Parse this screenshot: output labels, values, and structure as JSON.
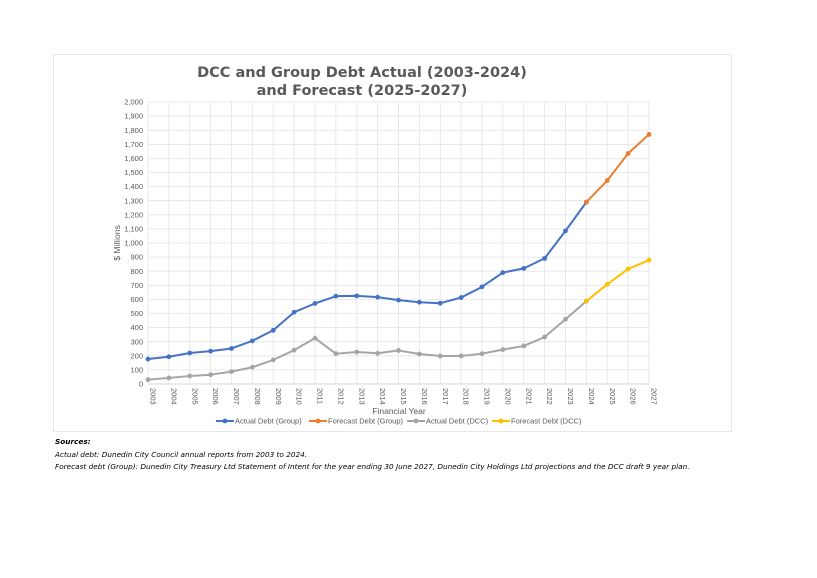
{
  "chart_data": {
    "type": "line",
    "title": [
      "DCC and Group Debt Actual (2003-2024)",
      "and Forecast (2025-2027)"
    ],
    "xlabel": "Financial Year",
    "ylabel": "$ Millions",
    "ylim": [
      0,
      2000
    ],
    "ytick_step": 100,
    "yticks": [
      "0",
      "100",
      "200",
      "300",
      "400",
      "500",
      "600",
      "700",
      "800",
      "900",
      "1,000",
      "1,100",
      "1,200",
      "1,300",
      "1,400",
      "1,500",
      "1,600",
      "1,700",
      "1,800",
      "1,900",
      "2,000"
    ],
    "grid": true,
    "legend_position": "bottom",
    "categories": [
      "2003",
      "2004",
      "2005",
      "2006",
      "2007",
      "2008",
      "2009",
      "2010",
      "2011",
      "2012",
      "2013",
      "2014",
      "2015",
      "2016",
      "2017",
      "2018",
      "2019",
      "2020",
      "2021",
      "2022",
      "2023",
      "2024",
      "2025",
      "2026",
      "2027"
    ],
    "series": [
      {
        "name": "Actual Debt (Group)",
        "color": "#4472C4",
        "values": [
          177,
          193,
          220,
          233,
          252,
          306,
          381,
          509,
          571,
          623,
          625,
          616,
          595,
          580,
          573,
          613,
          689,
          790,
          820,
          891,
          1086,
          1290,
          null,
          null,
          null
        ]
      },
      {
        "name": "Forecast Debt (Group)",
        "color": "#ED7D31",
        "values": [
          null,
          null,
          null,
          null,
          null,
          null,
          null,
          null,
          null,
          null,
          null,
          null,
          null,
          null,
          null,
          null,
          null,
          null,
          null,
          null,
          null,
          1290,
          1443,
          1635,
          1770
        ]
      },
      {
        "name": "Actual Debt (DCC)",
        "color": "#A5A5A5",
        "values": [
          31,
          43,
          57,
          66,
          88,
          119,
          171,
          240,
          325,
          215,
          227,
          218,
          238,
          213,
          199,
          199,
          215,
          244,
          270,
          333,
          459,
          588,
          null,
          null,
          null
        ]
      },
      {
        "name": "Forecast Debt (DCC)",
        "color": "#FFC000",
        "values": [
          null,
          null,
          null,
          null,
          null,
          null,
          null,
          null,
          null,
          null,
          null,
          null,
          null,
          null,
          null,
          null,
          null,
          null,
          null,
          null,
          null,
          588,
          707,
          816,
          878
        ]
      }
    ]
  },
  "sources": {
    "heading": "Sources:",
    "lines": [
      "Actual debt: Dunedin City Council annual reports from 2003 to 2024.",
      "Forecast debt (Group): Dunedin City Treasury Ltd Statement of Intent for the year ending 30 June 2027, Dunedin City Holdings Ltd projections and the DCC draft 9 year plan."
    ]
  }
}
